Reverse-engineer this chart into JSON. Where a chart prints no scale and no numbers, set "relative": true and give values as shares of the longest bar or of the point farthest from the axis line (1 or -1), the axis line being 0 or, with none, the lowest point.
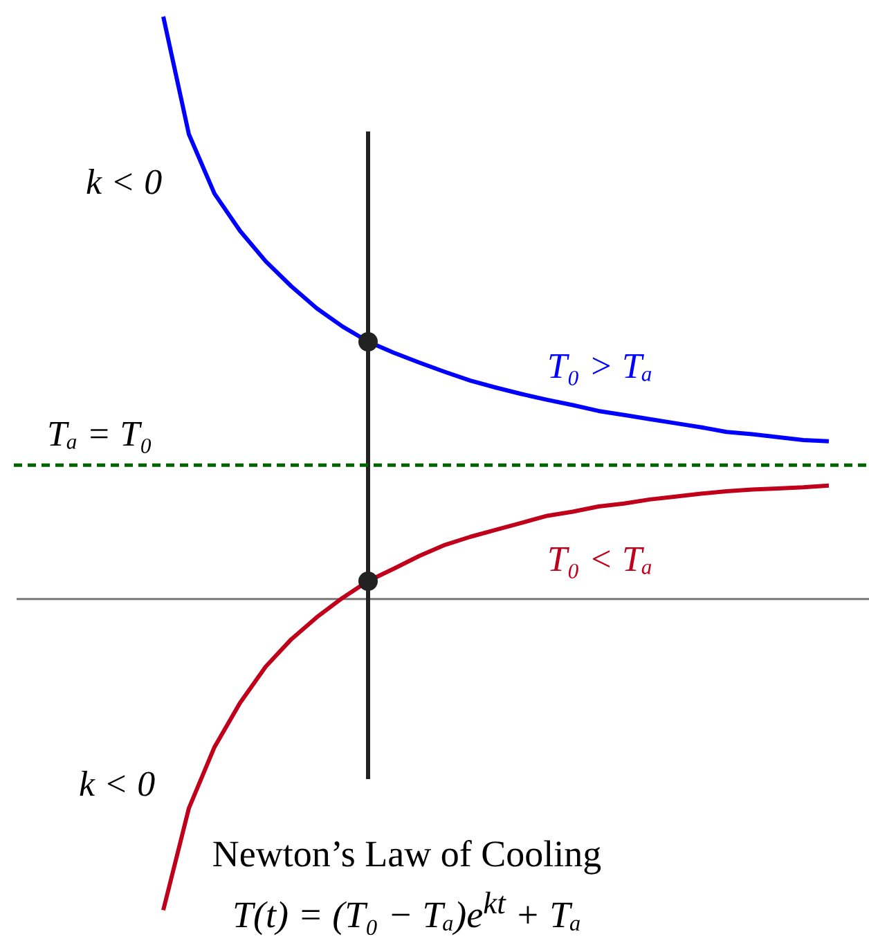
{
  "chart_data": {
    "type": "line",
    "relative": true,
    "title": "Newton’s Law of Cooling",
    "subtitle": "T(t) = (T₀ − Tₐ)e$^{kt}$ + Tₐ",
    "categories": [
      null,
      null,
      null,
      null,
      null,
      null,
      null,
      null,
      null,
      null,
      null,
      null,
      null,
      null,
      null,
      null,
      null,
      null,
      null,
      null,
      null,
      null,
      null,
      null,
      null,
      null,
      null
    ],
    "series": [
      {
        "name": "T₀ > Tₐ",
        "color": "#0000ff",
        "values": [
          1,
          0.798,
          0.696,
          0.632,
          0.58,
          0.537,
          0.499,
          0.468,
          0.442,
          0.423,
          0.406,
          0.39,
          0.375,
          0.363,
          0.352,
          0.342,
          0.333,
          0.323,
          0.316,
          0.309,
          0.302,
          0.295,
          0.287,
          0.283,
          0.278,
          0.273,
          0.271
        ]
      },
      {
        "name": "T₀ < Tₐ",
        "color": "#c0001a",
        "values": [
          -0.534,
          -0.359,
          -0.254,
          -0.178,
          -0.116,
          -0.069,
          -0.031,
          0.002,
          0.031,
          0.052,
          0.074,
          0.093,
          0.107,
          0.119,
          0.131,
          0.143,
          0.15,
          0.159,
          0.164,
          0.171,
          0.176,
          0.181,
          0.185,
          0.188,
          0.19,
          0.192,
          0.195
        ]
      }
    ],
    "ref_lines": [
      {
        "axis": "y",
        "value": 0.23,
        "label": "Tₐ = T₀",
        "color": "#006400",
        "line_style": "dashed"
      }
    ],
    "annotations": [
      "k < 0",
      "k < 0"
    ],
    "legend": false,
    "marker": "none"
  }
}
